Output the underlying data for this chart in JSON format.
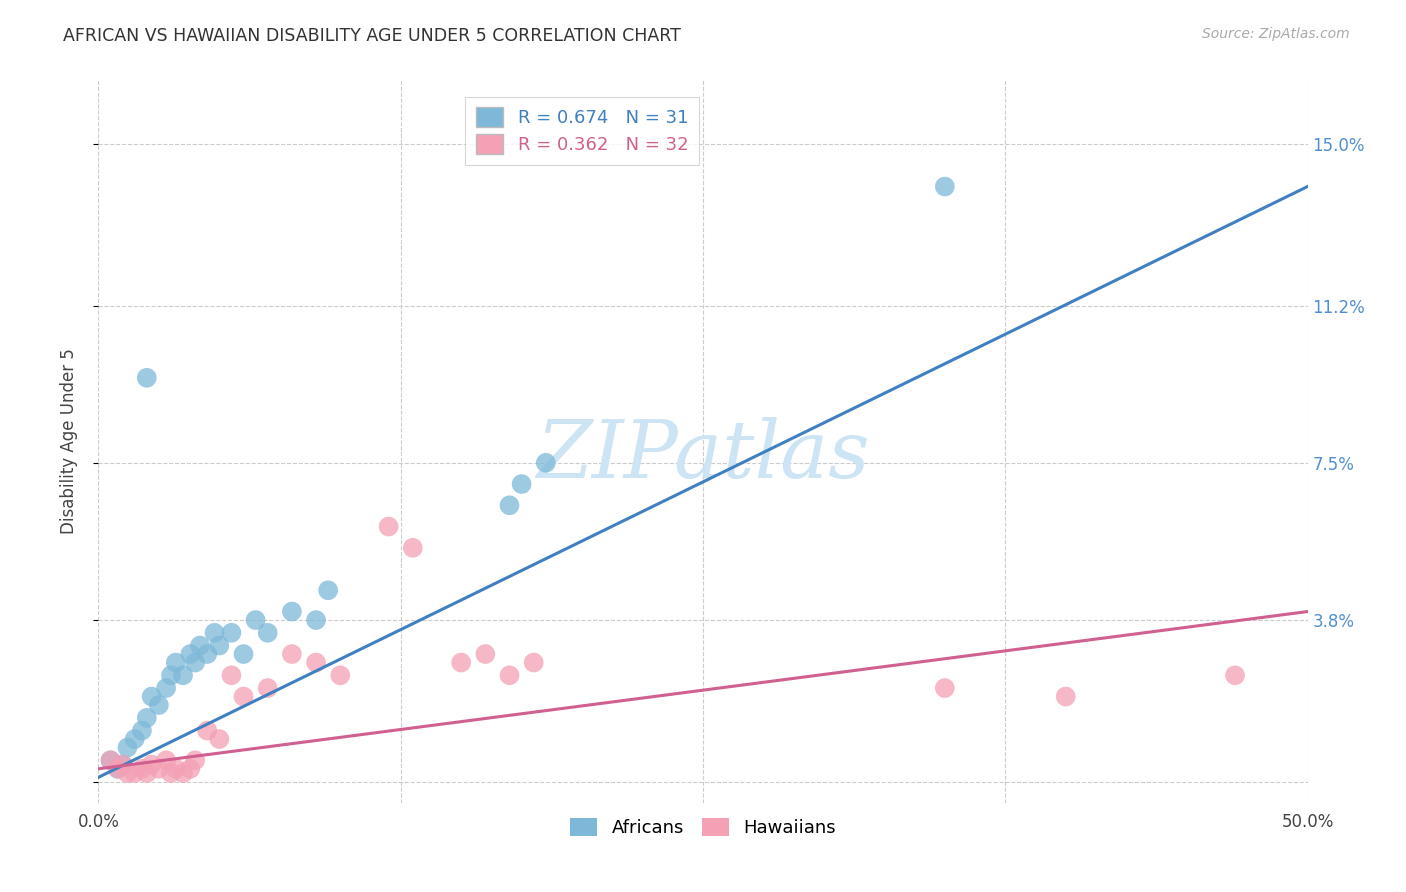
{
  "title": "AFRICAN VS HAWAIIAN DISABILITY AGE UNDER 5 CORRELATION CHART",
  "source": "Source: ZipAtlas.com",
  "ylabel": "Disability Age Under 5",
  "xlim": [
    0.0,
    0.5
  ],
  "ylim": [
    -0.005,
    0.165
  ],
  "ytick_values": [
    0.0,
    0.038,
    0.075,
    0.112,
    0.15
  ],
  "ytick_right_labels": [
    "",
    "3.8%",
    "7.5%",
    "11.2%",
    "15.0%"
  ],
  "xtick_values": [
    0.0,
    0.5
  ],
  "xtick_labels": [
    "0.0%",
    "50.0%"
  ],
  "african_R": 0.674,
  "african_N": 31,
  "hawaiian_R": 0.362,
  "hawaiian_N": 32,
  "african_color": "#7db8d8",
  "hawaiian_color": "#f4a0b5",
  "african_line_color": "#4080c0",
  "hawaiian_line_color": "#d06090",
  "right_tick_color": "#5090d0",
  "watermark": "ZIPatlas",
  "watermark_color": "#cce4f4",
  "african_scatter_x": [
    0.005,
    0.008,
    0.01,
    0.012,
    0.015,
    0.018,
    0.02,
    0.022,
    0.025,
    0.028,
    0.03,
    0.032,
    0.035,
    0.038,
    0.04,
    0.042,
    0.045,
    0.048,
    0.05,
    0.055,
    0.06,
    0.065,
    0.07,
    0.08,
    0.09,
    0.095,
    0.17,
    0.175,
    0.185,
    0.35,
    0.02
  ],
  "african_scatter_y": [
    0.005,
    0.003,
    0.004,
    0.008,
    0.01,
    0.012,
    0.015,
    0.02,
    0.018,
    0.022,
    0.025,
    0.028,
    0.025,
    0.03,
    0.028,
    0.032,
    0.03,
    0.035,
    0.032,
    0.035,
    0.03,
    0.038,
    0.035,
    0.04,
    0.038,
    0.045,
    0.065,
    0.07,
    0.075,
    0.14,
    0.095
  ],
  "hawaiian_scatter_x": [
    0.005,
    0.008,
    0.01,
    0.012,
    0.015,
    0.018,
    0.02,
    0.022,
    0.025,
    0.028,
    0.03,
    0.032,
    0.035,
    0.038,
    0.04,
    0.045,
    0.05,
    0.055,
    0.06,
    0.07,
    0.08,
    0.09,
    0.1,
    0.12,
    0.13,
    0.15,
    0.16,
    0.17,
    0.18,
    0.35,
    0.4,
    0.47
  ],
  "hawaiian_scatter_y": [
    0.005,
    0.003,
    0.004,
    0.002,
    0.002,
    0.003,
    0.002,
    0.004,
    0.003,
    0.005,
    0.002,
    0.003,
    0.002,
    0.003,
    0.005,
    0.012,
    0.01,
    0.025,
    0.02,
    0.022,
    0.03,
    0.028,
    0.025,
    0.06,
    0.055,
    0.028,
    0.03,
    0.025,
    0.028,
    0.022,
    0.02,
    0.025
  ],
  "african_line_x": [
    0.0,
    0.5
  ],
  "african_line_y": [
    0.001,
    0.14
  ],
  "hawaiian_line_x": [
    0.0,
    0.5
  ],
  "hawaiian_line_y": [
    0.003,
    0.04
  ],
  "grid_color": "#cccccc",
  "background_color": "#ffffff"
}
